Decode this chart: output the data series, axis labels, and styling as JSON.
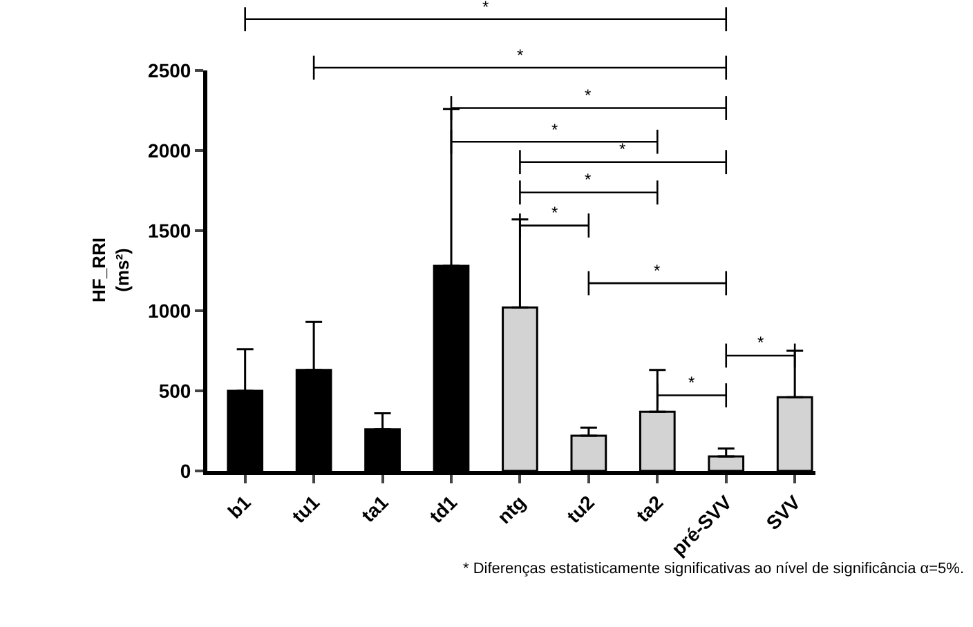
{
  "chart_data": {
    "type": "bar",
    "ylabel": "HF_RRI\n(ms²)",
    "categories": [
      "b1",
      "tu1",
      "ta1",
      "td1",
      "ntg",
      "tu2",
      "ta2",
      "pré-SVV",
      "SVV"
    ],
    "values": [
      500,
      630,
      260,
      1280,
      1020,
      220,
      370,
      90,
      460
    ],
    "colors": [
      "#000000",
      "#000000",
      "#000000",
      "#000000",
      "#d3d3d3",
      "#d3d3d3",
      "#d3d3d3",
      "#d3d3d3",
      "#d3d3d3"
    ],
    "errors": [
      [
        500,
        760
      ],
      [
        630,
        930
      ],
      [
        260,
        360
      ],
      [
        1280,
        2260
      ],
      [
        1020,
        1570
      ],
      [
        220,
        270
      ],
      [
        370,
        630
      ],
      [
        90,
        140
      ],
      [
        460,
        750
      ]
    ],
    "ylim": [
      0,
      2500
    ],
    "yticks": [
      0,
      500,
      1000,
      1500,
      2000,
      2500
    ],
    "annotations": [
      "*",
      "*",
      "*",
      "*",
      "*",
      "*",
      "*",
      "*",
      "*",
      "*",
      "* Diferenças estatisticamente significativas ao nível de significância α=5%."
    ]
  }
}
